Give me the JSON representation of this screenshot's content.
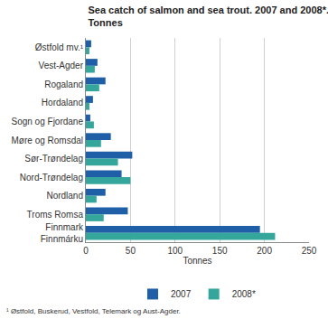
{
  "chart_data": {
    "type": "bar",
    "orientation": "horizontal",
    "title": "Sea catch of salmon and sea trout. 2007 and 2008*.\nTonnes",
    "x_label": "Tonnes",
    "categories": [
      "Østfold mv.¹",
      "Vest-Agder",
      "Rogaland",
      "Hordaland",
      "Sogn og Fjordane",
      "Møre og Romsdal",
      "Sør-Trøndelag",
      "Nord-Trøndelag",
      "Nordland",
      "Troms Romsa",
      "Finnmark\nFinnmárku"
    ],
    "series": [
      {
        "name": "2007",
        "color": "#1f5fa8",
        "values": [
          6,
          13,
          22,
          8,
          5,
          28,
          52,
          40,
          22,
          47,
          195
        ]
      },
      {
        "name": "2008*",
        "color": "#35a69c",
        "values": [
          4,
          10,
          15,
          4,
          9,
          17,
          36,
          50,
          12,
          20,
          212
        ]
      }
    ],
    "xlim": [
      0,
      250
    ],
    "xticks": [
      0,
      50,
      100,
      150,
      200,
      250
    ],
    "grid": true,
    "legend": "bottom",
    "annotations": [
      "¹ Østfold, Buskerud, Vestfold, Telemark og Aust-Agder."
    ]
  }
}
